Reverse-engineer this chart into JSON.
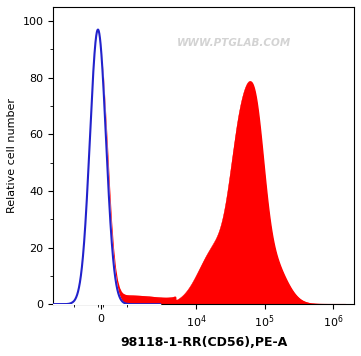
{
  "title": "",
  "xlabel": "98118-1-RR(CD56),PE-A",
  "ylabel": "Relative cell number",
  "ylim": [
    0,
    105
  ],
  "yticks": [
    0,
    20,
    40,
    60,
    80,
    100
  ],
  "background_color": "#ffffff",
  "watermark": "WWW.PTGLAB.COM",
  "red_fill_color": "#ff0000",
  "blue_line_color": "#2222cc",
  "linthresh": 1000,
  "linscale": 0.35
}
